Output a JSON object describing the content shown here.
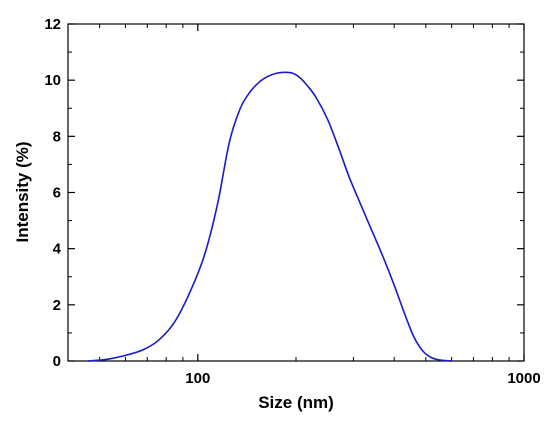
{
  "chart_data": {
    "type": "line",
    "xlabel": "Size (nm)",
    "ylabel": "Intensity (%)",
    "xscale": "log",
    "xlim": [
      40,
      1000
    ],
    "ylim": [
      0,
      12
    ],
    "x_ticks": [
      100,
      1000
    ],
    "x_tick_labels": [
      "100",
      "1000"
    ],
    "y_ticks": [
      0,
      2,
      4,
      6,
      8,
      10,
      12
    ],
    "y_tick_labels": [
      "0",
      "2",
      "4",
      "6",
      "8",
      "10",
      "12"
    ],
    "grid": false,
    "legend": "none",
    "series": [
      {
        "color": "#1a1acc",
        "x": [
          46,
          52,
          60,
          68,
          76,
          85,
          95,
          105,
          115,
          125,
          135,
          145,
          155,
          165,
          175,
          185,
          195,
          205,
          215,
          230,
          250,
          270,
          290,
          315,
          340,
          370,
          400,
          430,
          460,
          490,
          520,
          550,
          580,
          600
        ],
        "y": [
          0,
          0.05,
          0.2,
          0.4,
          0.75,
          1.4,
          2.5,
          3.8,
          5.6,
          7.8,
          9.0,
          9.6,
          9.95,
          10.15,
          10.25,
          10.28,
          10.25,
          10.1,
          9.85,
          9.4,
          8.6,
          7.6,
          6.6,
          5.6,
          4.7,
          3.7,
          2.7,
          1.7,
          0.85,
          0.35,
          0.12,
          0.04,
          0.01,
          0
        ]
      }
    ]
  }
}
